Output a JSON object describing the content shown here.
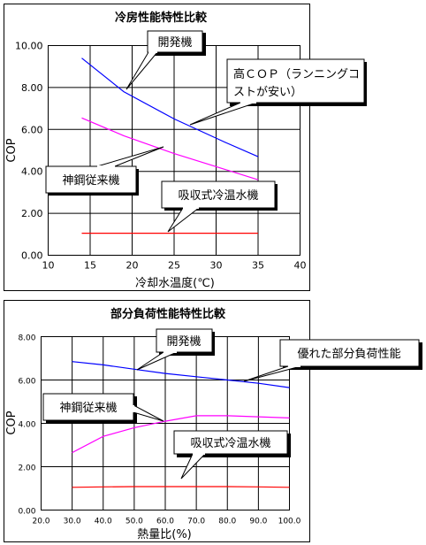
{
  "chart_data": [
    {
      "type": "line",
      "title": "冷房性能特性比較",
      "xlabel": "冷却水温度(℃)",
      "ylabel": "COP",
      "xlim": [
        10,
        40
      ],
      "ylim": [
        0,
        10
      ],
      "x_ticks": [
        "10",
        "15",
        "20",
        "25",
        "30",
        "35",
        "40"
      ],
      "y_ticks": [
        "0.00",
        "2.00",
        "4.00",
        "6.00",
        "8.00",
        "10.00"
      ],
      "grid": true,
      "series": [
        {
          "name": "開発機",
          "color": "#0000ff",
          "x": [
            14,
            19,
            25,
            31,
            35
          ],
          "y": [
            9.4,
            7.8,
            6.5,
            5.4,
            4.7
          ]
        },
        {
          "name": "神鋼従来機",
          "color": "#ff00ff",
          "x": [
            14,
            19,
            25,
            31,
            35
          ],
          "y": [
            6.55,
            5.7,
            4.85,
            4.1,
            3.6
          ]
        },
        {
          "name": "吸収式冷温水機",
          "color": "#ff0000",
          "x": [
            14,
            35
          ],
          "y": [
            1.05,
            1.05
          ]
        }
      ],
      "annotations": [
        {
          "text": "開発機"
        },
        {
          "text": "高ＣＯＰ（ランニングコストが安い）",
          "lines": [
            "高ＣＯＰ（ランニングコ",
            "ストが安い）"
          ]
        },
        {
          "text": "神鋼従来機"
        },
        {
          "text": "吸収式冷温水機"
        }
      ]
    },
    {
      "type": "line",
      "title": "部分負荷性能特性比較",
      "xlabel": "熱量比(%)",
      "ylabel": "COP",
      "xlim": [
        20,
        100
      ],
      "ylim": [
        0,
        8
      ],
      "x_ticks": [
        "20.0",
        "30.0",
        "40.0",
        "50.0",
        "60.0",
        "70.0",
        "80.0",
        "90.0",
        "100.0"
      ],
      "y_ticks": [
        "0.00",
        "2.00",
        "4.00",
        "6.00",
        "8.00"
      ],
      "grid": true,
      "series": [
        {
          "name": "開発機",
          "color": "#0000ff",
          "x": [
            30,
            40,
            50,
            60,
            70,
            80,
            90,
            100
          ],
          "y": [
            6.85,
            6.7,
            6.5,
            6.3,
            6.15,
            6.0,
            5.85,
            5.65
          ]
        },
        {
          "name": "神鋼従来機",
          "color": "#ff00ff",
          "x": [
            30,
            40,
            50,
            60,
            70,
            80,
            90,
            100
          ],
          "y": [
            2.65,
            3.4,
            3.8,
            4.1,
            4.35,
            4.35,
            4.3,
            4.25
          ]
        },
        {
          "name": "吸収式冷温水機",
          "color": "#ff0000",
          "x": [
            30,
            40,
            50,
            60,
            70,
            80,
            90,
            100
          ],
          "y": [
            1.05,
            1.07,
            1.08,
            1.08,
            1.08,
            1.08,
            1.07,
            1.05
          ]
        }
      ],
      "annotations": [
        {
          "text": "開発機"
        },
        {
          "text": "優れた部分負荷性能"
        },
        {
          "text": "神鋼従来機"
        },
        {
          "text": "吸収式冷温水機"
        }
      ]
    }
  ]
}
